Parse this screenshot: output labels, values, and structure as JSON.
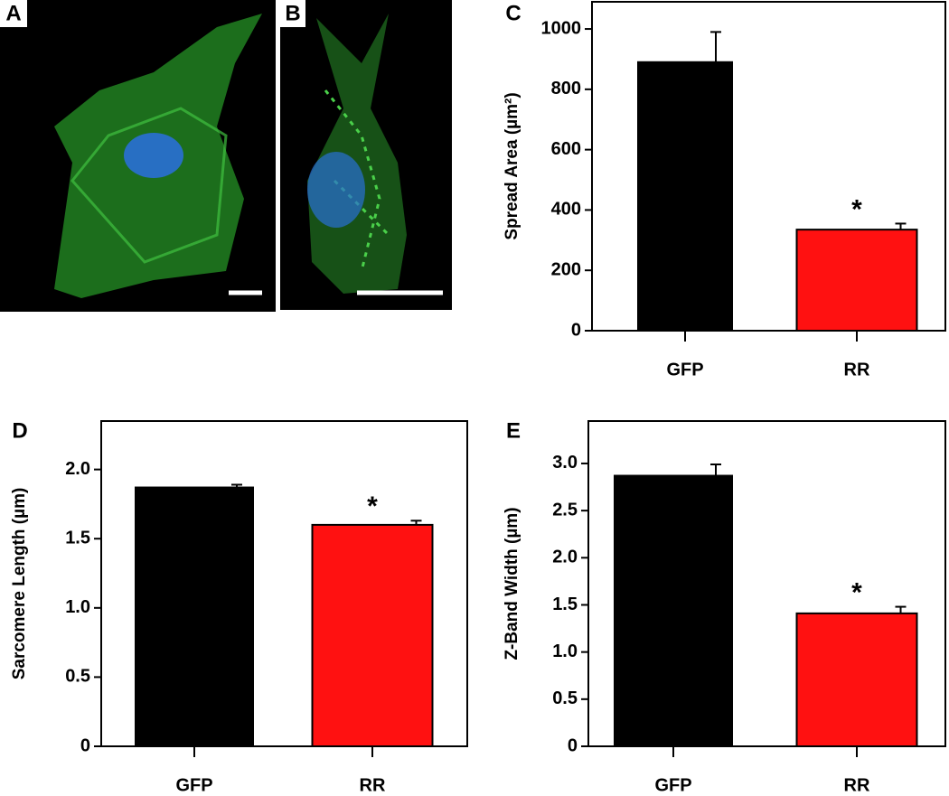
{
  "images": [
    {
      "panel_label": "A"
    },
    {
      "panel_label": "B"
    }
  ],
  "chart_data": [
    {
      "type": "bar",
      "panel_label": "C",
      "ylabel": "Spread Area (µm²)",
      "categories": [
        "GFP",
        "RR"
      ],
      "values": [
        890,
        335
      ],
      "errors": [
        100,
        20
      ],
      "colors": [
        "#000000",
        "#ff1111"
      ],
      "annotations": [
        "*"
      ],
      "ylim": [
        0,
        1090
      ],
      "yticks": [
        0,
        200,
        400,
        600,
        800,
        1000
      ]
    },
    {
      "type": "bar",
      "panel_label": "D",
      "ylabel": "Sarcomere Length (µm)",
      "categories": [
        "GFP",
        "RR"
      ],
      "values": [
        1.87,
        1.6
      ],
      "errors": [
        0.02,
        0.03
      ],
      "colors": [
        "#000000",
        "#ff1111"
      ],
      "annotations": [
        "*"
      ],
      "ylim": [
        0,
        2.35
      ],
      "yticks": [
        0,
        0.5,
        {
          "value": 1,
          "label": "1.0"
        },
        1.5,
        {
          "value": 2,
          "label": "2.0"
        }
      ]
    },
    {
      "type": "bar",
      "panel_label": "E",
      "ylabel": "Z-Band Width (µm)",
      "categories": [
        "GFP",
        "RR"
      ],
      "values": [
        2.87,
        1.41
      ],
      "errors": [
        0.12,
        0.07
      ],
      "colors": [
        "#000000",
        "#ff1111"
      ],
      "annotations": [
        "*"
      ],
      "ylim": [
        0,
        3.45
      ],
      "yticks": [
        0,
        0.5,
        {
          "value": 1,
          "label": "1.0"
        },
        1.5,
        {
          "value": 2,
          "label": "2.0"
        },
        2.5,
        {
          "value": 3,
          "label": "3.0"
        }
      ]
    }
  ]
}
